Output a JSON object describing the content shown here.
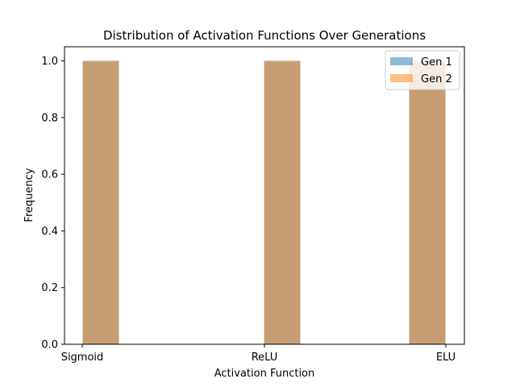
{
  "chart_data": {
    "type": "bar",
    "title": "Distribution of Activation Functions Over Generations",
    "xlabel": "Activation Function",
    "ylabel": "Frequency",
    "categories": [
      "Sigmoid",
      "ReLU",
      "ELU"
    ],
    "ylim": [
      0,
      1.05
    ],
    "yticks": [
      "0.0",
      "0.2",
      "0.4",
      "0.6",
      "0.8",
      "1.0"
    ],
    "series": [
      {
        "name": "Gen 1",
        "values": [
          1,
          1,
          1
        ],
        "color": "#1f77b4",
        "opacity": 0.5
      },
      {
        "name": "Gen 2",
        "values": [
          1,
          1,
          1
        ],
        "color": "#ff7f0e",
        "opacity": 0.5
      }
    ],
    "legend_position": "top-right",
    "grid": false
  }
}
